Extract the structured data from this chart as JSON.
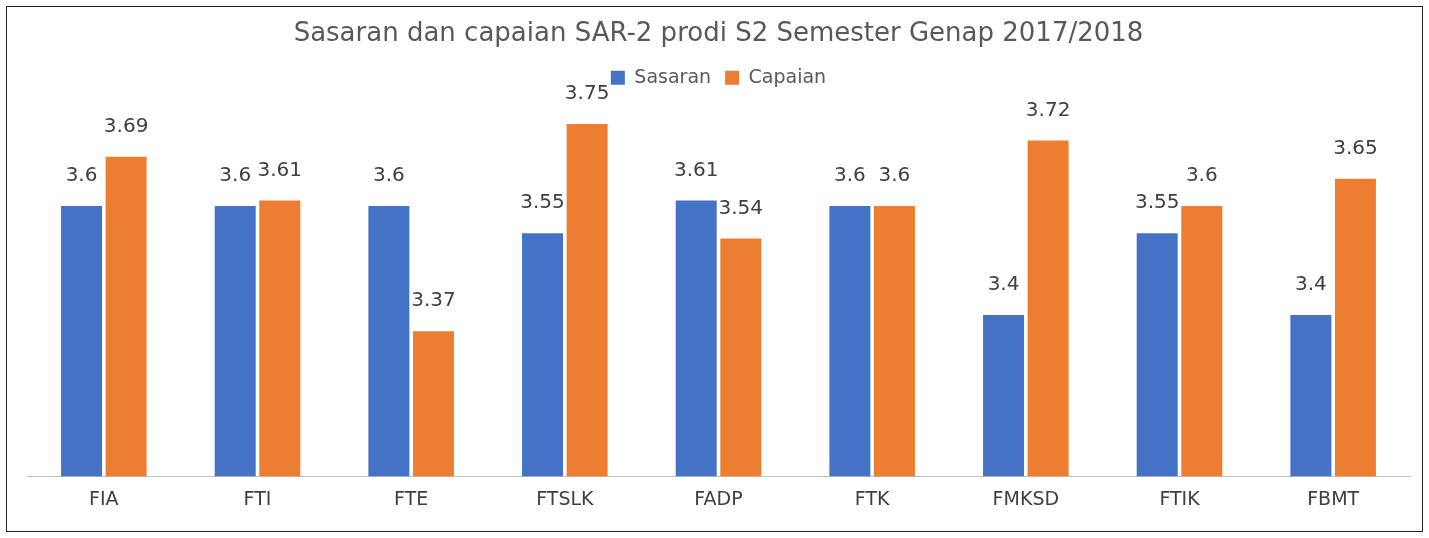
{
  "chart_data": {
    "type": "bar",
    "title": "Sasaran dan capaian SAR-2 prodi S2 Semester Genap 2017/2018",
    "categories": [
      "FIA",
      "FTI",
      "FTE",
      "FTSLK",
      "FADP",
      "FTK",
      "FMKSD",
      "FTIK",
      "FBMT"
    ],
    "series": [
      {
        "name": "Sasaran",
        "color": "#4472c4",
        "values": [
          3.6,
          3.6,
          3.6,
          3.55,
          3.61,
          3.6,
          3.4,
          3.55,
          3.4
        ]
      },
      {
        "name": "Capaian",
        "color": "#ed7d31",
        "values": [
          3.69,
          3.61,
          3.37,
          3.75,
          3.54,
          3.6,
          3.72,
          3.6,
          3.65
        ]
      }
    ],
    "tick_labels": "x",
    "grid": false,
    "legend": "top",
    "data_labels": true
  }
}
